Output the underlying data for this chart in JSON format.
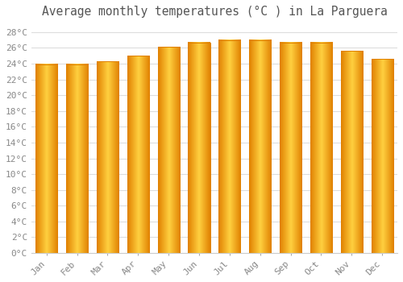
{
  "title": "Average monthly temperatures (°C ) in La Parguera",
  "months": [
    "Jan",
    "Feb",
    "Mar",
    "Apr",
    "May",
    "Jun",
    "Jul",
    "Aug",
    "Sep",
    "Oct",
    "Nov",
    "Dec"
  ],
  "values": [
    23.9,
    23.9,
    24.3,
    25.0,
    26.1,
    26.7,
    27.0,
    27.0,
    26.7,
    26.7,
    25.6,
    24.6
  ],
  "bar_color_center": "#FFD040",
  "bar_color_edge": "#E08000",
  "ylim": [
    0,
    29
  ],
  "ytick_step": 2,
  "background_color": "#ffffff",
  "grid_color": "#dddddd",
  "title_fontsize": 10.5,
  "tick_fontsize": 8,
  "title_color": "#555555",
  "tick_color": "#888888"
}
